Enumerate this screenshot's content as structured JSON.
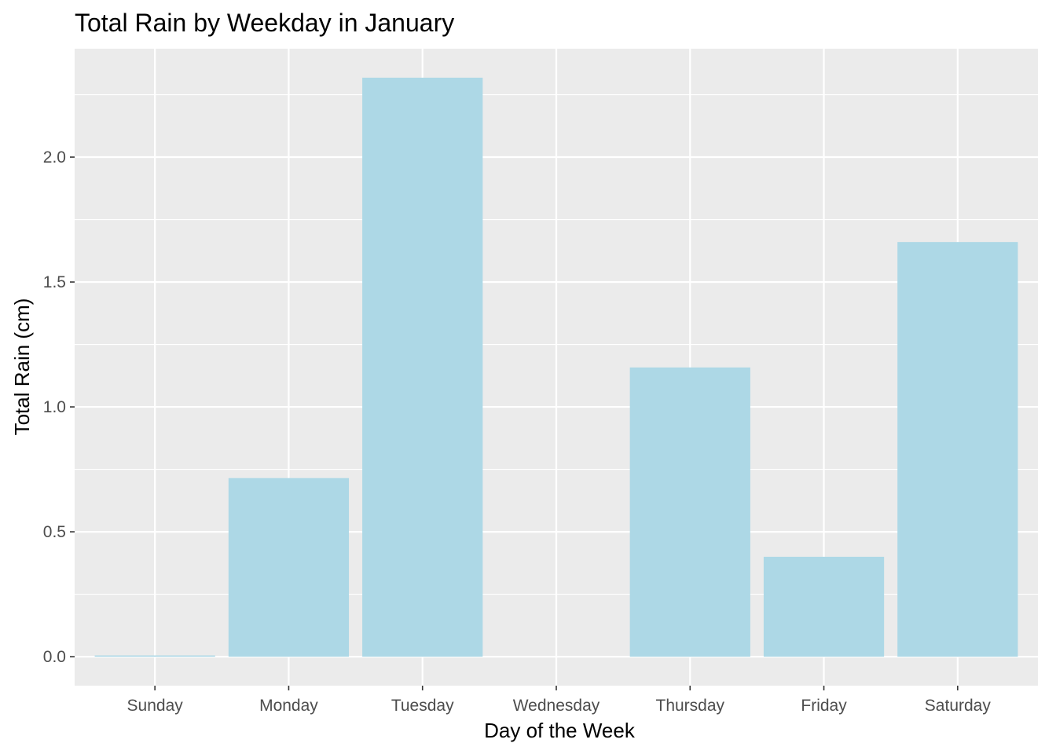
{
  "chart_data": {
    "type": "bar",
    "title": "Total Rain by Weekday in January",
    "xlabel": "Day of the Week",
    "ylabel": "Total Rain (cm)",
    "categories": [
      "Sunday",
      "Monday",
      "Tuesday",
      "Wednesday",
      "Thursday",
      "Friday",
      "Saturday"
    ],
    "values": [
      0.005,
      0.715,
      2.318,
      0.0,
      1.158,
      0.4,
      1.66
    ],
    "ylim": [
      -0.116,
      2.434
    ],
    "yticks": [
      0.0,
      0.5,
      1.0,
      1.5,
      2.0
    ],
    "ytick_labels": [
      "0.0",
      "0.5",
      "1.0",
      "1.5",
      "2.0"
    ],
    "grid": true,
    "legend": "none",
    "colors": {
      "bar_fill": "#add8e6",
      "panel_background": "#ebebeb",
      "grid_line": "#ffffff",
      "tick_label": "#4d4d4d",
      "tick_mark": "#333333"
    }
  }
}
